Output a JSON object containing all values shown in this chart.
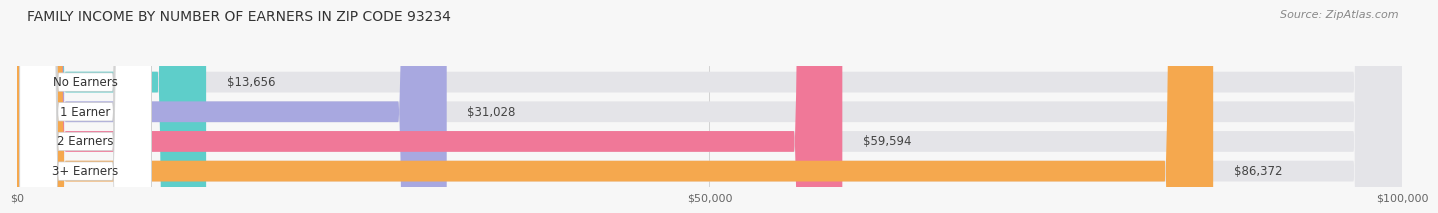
{
  "title": "FAMILY INCOME BY NUMBER OF EARNERS IN ZIP CODE 93234",
  "source": "Source: ZipAtlas.com",
  "categories": [
    "No Earners",
    "1 Earner",
    "2 Earners",
    "3+ Earners"
  ],
  "values": [
    13656,
    31028,
    59594,
    86372
  ],
  "labels": [
    "$13,656",
    "$31,028",
    "$59,594",
    "$86,372"
  ],
  "bar_colors": [
    "#5ececa",
    "#a8a8e0",
    "#f07898",
    "#f5a84e"
  ],
  "bar_bg_color": "#e4e4e8",
  "label_bg_color": "#ffffff",
  "xlim": [
    0,
    100000
  ],
  "xtick_labels": [
    "$0",
    "$50,000",
    "$100,000"
  ],
  "xtick_values": [
    0,
    50000,
    100000
  ],
  "background_color": "#f7f7f7",
  "title_fontsize": 10,
  "source_fontsize": 8,
  "bar_label_fontsize": 8.5,
  "category_fontsize": 8.5,
  "tick_fontsize": 8
}
